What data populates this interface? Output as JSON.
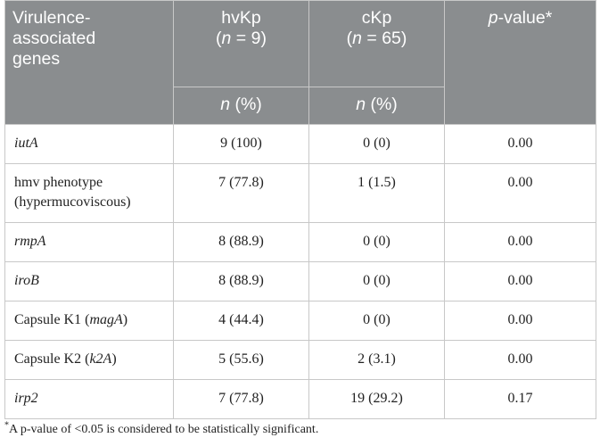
{
  "table": {
    "header": {
      "gene_col": "Virulence-associated genes",
      "hv_label": "hvKp",
      "hv_n": "(n = 9)",
      "c_label": "cKp",
      "c_n": "(n = 65)",
      "p_label": "p-value*",
      "sub_hv": "n (%)",
      "sub_c": "n (%)"
    },
    "rows": [
      {
        "gene": "iutA",
        "italic": true,
        "hv": "9 (100)",
        "c": "0 (0)",
        "p": "0.00"
      },
      {
        "gene": "hmv phenotype (hypermucoviscous)",
        "italic": false,
        "hv": "7 (77.8)",
        "c": "1 (1.5)",
        "p": "0.00"
      },
      {
        "gene": "rmpA",
        "italic": true,
        "hv": "8 (88.9)",
        "c": "0 (0)",
        "p": "0.00"
      },
      {
        "gene": "iroB",
        "italic": true,
        "hv": "8 (88.9)",
        "c": "0 (0)",
        "p": "0.00"
      },
      {
        "gene_prefix": "Capsule K1 (",
        "gene_italic": "magA",
        "gene_suffix": ")",
        "hv": "4 (44.4)",
        "c": "0 (0)",
        "p": "0.00"
      },
      {
        "gene_prefix": "Capsule K2 (",
        "gene_italic": "k2A",
        "gene_suffix": ")",
        "hv": "5 (55.6)",
        "c": "2 (3.1)",
        "p": "0.00"
      },
      {
        "gene": "irp2",
        "italic": true,
        "hv": "7 (77.8)",
        "c": "19 (29.2)",
        "p": "0.17"
      }
    ]
  },
  "footnote": {
    "marker": "*",
    "text": "A p-value of <0.05 is considered to be statistically significant."
  }
}
